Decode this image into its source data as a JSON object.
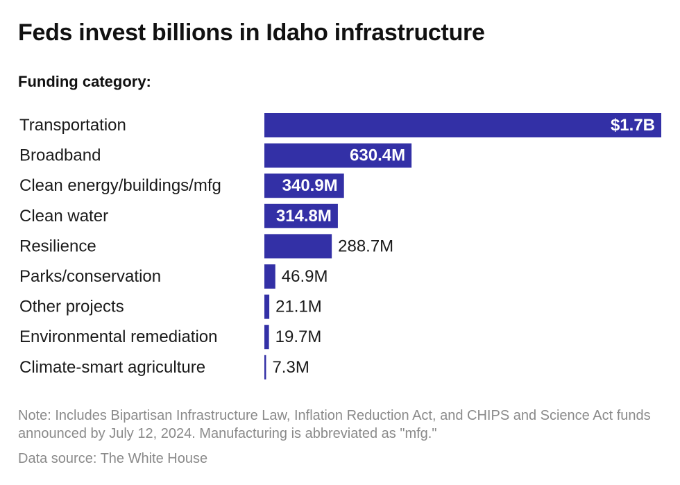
{
  "header": {
    "title": "Feds invest billions in Idaho infrastructure",
    "subtitle": "Funding category:"
  },
  "chart_data": {
    "type": "bar",
    "orientation": "horizontal",
    "categories": [
      "Transportation",
      "Broadband",
      "Clean energy/buildings/mfg",
      "Clean water",
      "Resilience",
      "Parks/conservation",
      "Other projects",
      "Environmental remediation",
      "Climate-smart agriculture"
    ],
    "values": [
      1700,
      630.4,
      340.9,
      314.8,
      288.7,
      46.9,
      21.1,
      19.7,
      7.3
    ],
    "value_unit": "$M",
    "value_labels": [
      "$1.7B",
      "630.4M",
      "340.9M",
      "314.8M",
      "288.7M",
      "46.9M",
      "21.1M",
      "19.7M",
      "7.3M"
    ],
    "bar_color": "#3330a6",
    "grid": false
  },
  "footer": {
    "note": "Note: Includes Bipartisan Infrastructure Law, Inflation Reduction Act, and CHIPS and Science Act funds announced by July 12, 2024. Manufacturing is abbreviated as \"mfg.\"",
    "source": "Data source: The White House"
  }
}
